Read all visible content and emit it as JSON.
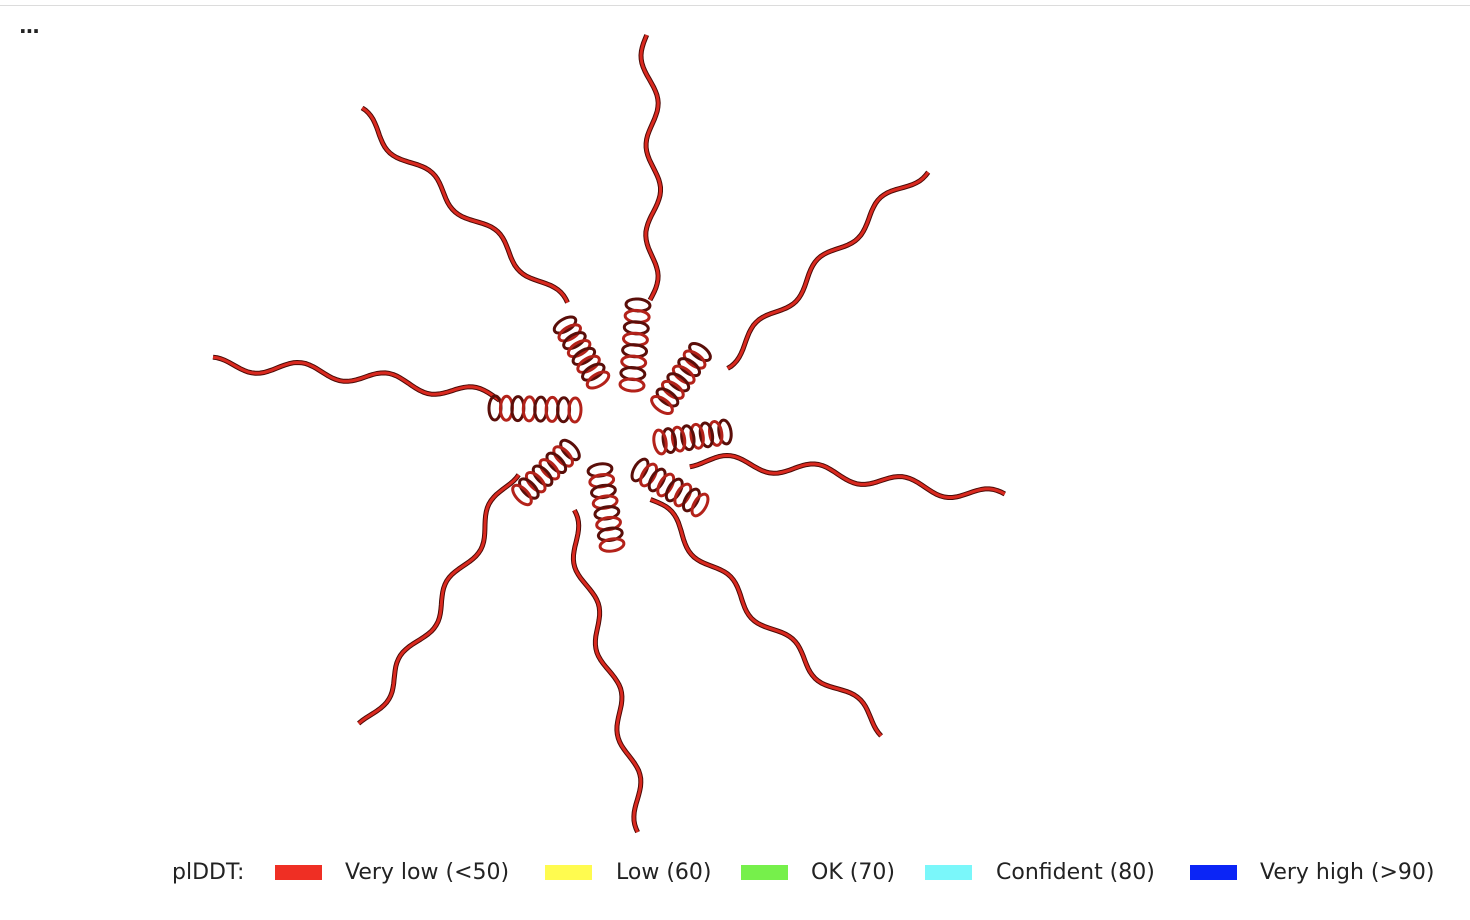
{
  "menu_label": "...",
  "legend": {
    "title": "plDDT:",
    "items": [
      {
        "label": "Very low (<50)",
        "color": "#ef2f24"
      },
      {
        "label": "Low (60)",
        "color": "#fffb4f"
      },
      {
        "label": "OK (70)",
        "color": "#76f04b"
      },
      {
        "label": "Confident (80)",
        "color": "#7af7fa"
      },
      {
        "label": "Very high (>90)",
        "color": "#0b25f6"
      }
    ]
  }
}
